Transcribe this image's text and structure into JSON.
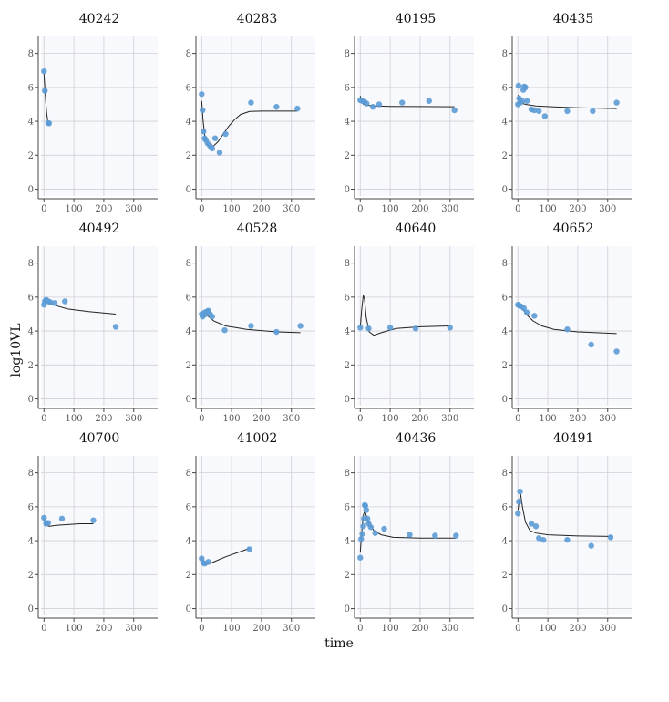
{
  "chart_data": {
    "type": "scatter",
    "xlabel": "time",
    "ylabel": "log10VL",
    "xlim": [
      -10,
      380
    ],
    "ylim": [
      -0.4,
      9
    ],
    "xticks": [
      0,
      100,
      200,
      300
    ],
    "yticks": [
      0,
      2,
      4,
      6,
      8
    ],
    "grid": true,
    "colors": {
      "points": "#5b9bd5",
      "fit_line": "#222222",
      "panel_bg": "#f8f9fc",
      "grid": "#cfcfd6"
    },
    "panels": [
      {
        "title": "40242",
        "points": [
          [
            0,
            6.95
          ],
          [
            3,
            5.8
          ],
          [
            14,
            3.9
          ],
          [
            17,
            3.88
          ]
        ],
        "fit": [
          [
            0,
            6.8
          ],
          [
            3,
            5.9
          ],
          [
            6,
            5.1
          ],
          [
            9,
            4.5
          ],
          [
            12,
            4.1
          ],
          [
            15,
            3.9
          ],
          [
            18,
            3.85
          ]
        ]
      },
      {
        "title": "40283",
        "points": [
          [
            0,
            5.6
          ],
          [
            3,
            4.65
          ],
          [
            6,
            3.4
          ],
          [
            10,
            3.0
          ],
          [
            14,
            2.9
          ],
          [
            20,
            2.7
          ],
          [
            28,
            2.55
          ],
          [
            35,
            2.4
          ],
          [
            45,
            3.0
          ],
          [
            60,
            2.15
          ],
          [
            80,
            3.25
          ],
          [
            165,
            5.1
          ],
          [
            250,
            4.85
          ],
          [
            320,
            4.75
          ]
        ],
        "fit": [
          [
            0,
            5.2
          ],
          [
            5,
            4.0
          ],
          [
            10,
            3.2
          ],
          [
            15,
            2.8
          ],
          [
            20,
            2.6
          ],
          [
            30,
            2.5
          ],
          [
            40,
            2.55
          ],
          [
            55,
            2.8
          ],
          [
            70,
            3.2
          ],
          [
            90,
            3.7
          ],
          [
            110,
            4.1
          ],
          [
            130,
            4.4
          ],
          [
            160,
            4.58
          ],
          [
            200,
            4.6
          ],
          [
            260,
            4.6
          ],
          [
            320,
            4.6
          ]
        ]
      },
      {
        "title": "40195",
        "points": [
          [
            0,
            5.25
          ],
          [
            7,
            5.2
          ],
          [
            14,
            5.15
          ],
          [
            21,
            5.05
          ],
          [
            42,
            4.85
          ],
          [
            63,
            5.0
          ],
          [
            140,
            5.1
          ],
          [
            230,
            5.2
          ],
          [
            315,
            4.65
          ]
        ],
        "fit": [
          [
            0,
            5.5
          ],
          [
            5,
            5.15
          ],
          [
            10,
            5.0
          ],
          [
            20,
            4.95
          ],
          [
            50,
            4.9
          ],
          [
            100,
            4.88
          ],
          [
            200,
            4.87
          ],
          [
            315,
            4.86
          ]
        ]
      },
      {
        "title": "40435",
        "points": [
          [
            0,
            5.0
          ],
          [
            2,
            6.1
          ],
          [
            4,
            5.35
          ],
          [
            8,
            5.1
          ],
          [
            14,
            5.2
          ],
          [
            18,
            5.85
          ],
          [
            21,
            6.05
          ],
          [
            25,
            6.0
          ],
          [
            30,
            5.2
          ],
          [
            45,
            4.7
          ],
          [
            55,
            4.65
          ],
          [
            70,
            4.6
          ],
          [
            90,
            4.3
          ],
          [
            165,
            4.6
          ],
          [
            250,
            4.6
          ],
          [
            330,
            5.1
          ]
        ],
        "fit": [
          [
            0,
            5.55
          ],
          [
            5,
            5.2
          ],
          [
            15,
            5.05
          ],
          [
            30,
            4.98
          ],
          [
            60,
            4.9
          ],
          [
            120,
            4.85
          ],
          [
            200,
            4.8
          ],
          [
            330,
            4.75
          ]
        ]
      },
      {
        "title": "40492",
        "points": [
          [
            0,
            5.55
          ],
          [
            3,
            5.75
          ],
          [
            7,
            5.85
          ],
          [
            14,
            5.75
          ],
          [
            21,
            5.7
          ],
          [
            35,
            5.65
          ],
          [
            70,
            5.75
          ],
          [
            240,
            4.25
          ]
        ],
        "fit": [
          [
            0,
            5.6
          ],
          [
            5,
            5.85
          ],
          [
            10,
            5.78
          ],
          [
            20,
            5.65
          ],
          [
            40,
            5.5
          ],
          [
            80,
            5.3
          ],
          [
            150,
            5.15
          ],
          [
            240,
            5.0
          ]
        ]
      },
      {
        "title": "40528",
        "points": [
          [
            0,
            5.0
          ],
          [
            3,
            4.85
          ],
          [
            7,
            4.95
          ],
          [
            10,
            5.1
          ],
          [
            14,
            5.0
          ],
          [
            18,
            5.15
          ],
          [
            22,
            5.2
          ],
          [
            28,
            5.0
          ],
          [
            35,
            4.85
          ],
          [
            77,
            4.05
          ],
          [
            165,
            4.3
          ],
          [
            250,
            3.95
          ],
          [
            330,
            4.3
          ]
        ],
        "fit": [
          [
            0,
            4.85
          ],
          [
            5,
            5.0
          ],
          [
            10,
            5.05
          ],
          [
            20,
            4.9
          ],
          [
            40,
            4.6
          ],
          [
            80,
            4.3
          ],
          [
            150,
            4.1
          ],
          [
            250,
            3.95
          ],
          [
            330,
            3.9
          ]
        ]
      },
      {
        "title": "40640",
        "points": [
          [
            0,
            4.2
          ],
          [
            28,
            4.15
          ],
          [
            100,
            4.2
          ],
          [
            185,
            4.15
          ],
          [
            300,
            4.2
          ]
        ],
        "fit": [
          [
            0,
            4.2
          ],
          [
            5,
            5.3
          ],
          [
            10,
            6.1
          ],
          [
            14,
            5.9
          ],
          [
            20,
            4.8
          ],
          [
            30,
            3.95
          ],
          [
            45,
            3.75
          ],
          [
            70,
            3.9
          ],
          [
            120,
            4.15
          ],
          [
            200,
            4.25
          ],
          [
            300,
            4.3
          ]
        ]
      },
      {
        "title": "40652",
        "points": [
          [
            0,
            5.55
          ],
          [
            5,
            5.5
          ],
          [
            10,
            5.45
          ],
          [
            20,
            5.35
          ],
          [
            30,
            5.1
          ],
          [
            55,
            4.9
          ],
          [
            165,
            4.1
          ],
          [
            245,
            3.2
          ],
          [
            330,
            2.8
          ]
        ],
        "fit": [
          [
            0,
            5.7
          ],
          [
            10,
            5.5
          ],
          [
            20,
            5.2
          ],
          [
            30,
            4.95
          ],
          [
            50,
            4.6
          ],
          [
            80,
            4.3
          ],
          [
            120,
            4.1
          ],
          [
            200,
            3.95
          ],
          [
            330,
            3.85
          ]
        ]
      },
      {
        "title": "40700",
        "points": [
          [
            0,
            5.35
          ],
          [
            7,
            5.0
          ],
          [
            14,
            5.05
          ],
          [
            60,
            5.3
          ],
          [
            165,
            5.2
          ]
        ],
        "fit": [
          [
            0,
            5.3
          ],
          [
            5,
            4.95
          ],
          [
            10,
            4.88
          ],
          [
            20,
            4.85
          ],
          [
            40,
            4.9
          ],
          [
            80,
            4.95
          ],
          [
            120,
            5.0
          ],
          [
            165,
            5.0
          ]
        ]
      },
      {
        "title": "41002",
        "points": [
          [
            0,
            2.95
          ],
          [
            5,
            2.7
          ],
          [
            10,
            2.65
          ],
          [
            22,
            2.75
          ],
          [
            160,
            3.5
          ]
        ],
        "fit": [
          [
            0,
            3.0
          ],
          [
            5,
            2.7
          ],
          [
            10,
            2.6
          ],
          [
            20,
            2.6
          ],
          [
            40,
            2.75
          ],
          [
            80,
            3.05
          ],
          [
            120,
            3.3
          ],
          [
            160,
            3.55
          ]
        ]
      },
      {
        "title": "40436",
        "points": [
          [
            0,
            3.0
          ],
          [
            3,
            4.1
          ],
          [
            7,
            4.4
          ],
          [
            10,
            4.85
          ],
          [
            12,
            5.3
          ],
          [
            15,
            6.1
          ],
          [
            17,
            6.05
          ],
          [
            20,
            5.8
          ],
          [
            24,
            5.3
          ],
          [
            28,
            5.0
          ],
          [
            35,
            4.8
          ],
          [
            50,
            4.45
          ],
          [
            80,
            4.7
          ],
          [
            165,
            4.35
          ],
          [
            250,
            4.3
          ],
          [
            320,
            4.3
          ]
        ],
        "fit": [
          [
            0,
            3.3
          ],
          [
            5,
            4.5
          ],
          [
            10,
            5.5
          ],
          [
            15,
            5.75
          ],
          [
            20,
            5.5
          ],
          [
            30,
            5.0
          ],
          [
            45,
            4.6
          ],
          [
            70,
            4.35
          ],
          [
            110,
            4.2
          ],
          [
            200,
            4.15
          ],
          [
            320,
            4.15
          ]
        ]
      },
      {
        "title": "40491",
        "points": [
          [
            0,
            5.6
          ],
          [
            3,
            6.3
          ],
          [
            7,
            6.9
          ],
          [
            45,
            5.0
          ],
          [
            60,
            4.85
          ],
          [
            70,
            4.15
          ],
          [
            85,
            4.05
          ],
          [
            165,
            4.05
          ],
          [
            245,
            3.7
          ],
          [
            310,
            4.2
          ]
        ],
        "fit": [
          [
            0,
            5.8
          ],
          [
            5,
            6.4
          ],
          [
            9,
            6.75
          ],
          [
            15,
            6.0
          ],
          [
            25,
            5.1
          ],
          [
            40,
            4.6
          ],
          [
            60,
            4.45
          ],
          [
            100,
            4.35
          ],
          [
            200,
            4.28
          ],
          [
            310,
            4.25
          ]
        ]
      }
    ]
  }
}
